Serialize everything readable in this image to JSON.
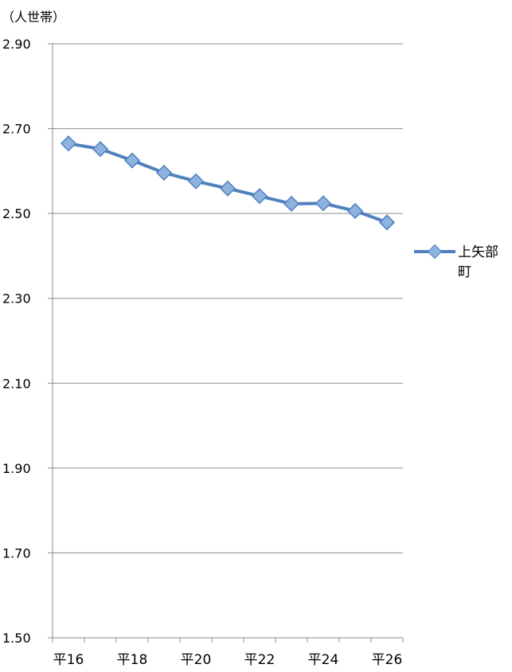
{
  "chart_data": {
    "type": "line",
    "unit_label": "（人世帯）",
    "ylim": [
      1.5,
      2.9
    ],
    "yticks": [
      "1.50",
      "1.70",
      "1.90",
      "2.10",
      "2.30",
      "2.50",
      "2.70",
      "2.90"
    ],
    "xtick_labels": [
      "平16",
      "平18",
      "平20",
      "平22",
      "平24",
      "平26"
    ],
    "grid": true,
    "legend_position": "right",
    "series_color": "#4F81BD",
    "marker_color": "#8FB3E0",
    "series": [
      {
        "name": "上矢部町",
        "legend_lines": [
          "上矢部",
          "町"
        ],
        "values": [
          2.665,
          2.652,
          2.625,
          2.596,
          2.576,
          2.559,
          2.541,
          2.523,
          2.524,
          2.506,
          2.479
        ]
      }
    ]
  }
}
